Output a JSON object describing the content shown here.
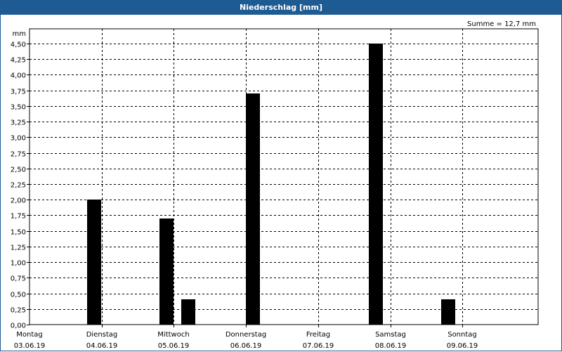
{
  "window": {
    "title": "Niederschlag [mm]"
  },
  "summary": {
    "text": "Summe = 12,7 mm"
  },
  "chart_data": {
    "type": "bar",
    "title": "Niederschlag [mm]",
    "ylabel": "mm",
    "ylim": [
      0,
      4.5
    ],
    "yticks": [
      "0,00",
      "0,25",
      "0,50",
      "0,75",
      "1,00",
      "1,25",
      "1,50",
      "1,75",
      "2,00",
      "2,25",
      "2,50",
      "2,75",
      "3,00",
      "3,25",
      "3,50",
      "3,75",
      "4,00",
      "4,25",
      "4,50"
    ],
    "days": [
      {
        "name": "Montag",
        "date": "03.06.19"
      },
      {
        "name": "Dienstag",
        "date": "04.06.19"
      },
      {
        "name": "Mittwoch",
        "date": "05.06.19"
      },
      {
        "name": "Donnerstag",
        "date": "06.06.19"
      },
      {
        "name": "Freitag",
        "date": "07.06.19"
      },
      {
        "name": "Samstag",
        "date": "08.06.19"
      },
      {
        "name": "Sonntag",
        "date": "09.06.19"
      }
    ],
    "bars": [
      {
        "day_offset": 0.9,
        "value": 2.0
      },
      {
        "day_offset": 1.9,
        "value": 1.7
      },
      {
        "day_offset": 2.2,
        "value": 0.4
      },
      {
        "day_offset": 3.1,
        "value": 3.7
      },
      {
        "day_offset": 4.8,
        "value": 4.5
      },
      {
        "day_offset": 5.8,
        "value": 0.4
      }
    ]
  }
}
